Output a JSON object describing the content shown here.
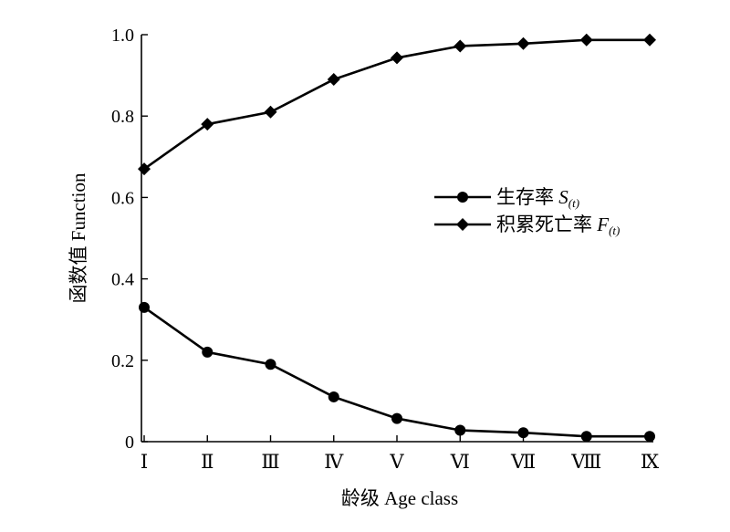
{
  "chart_data": {
    "type": "line",
    "categories": [
      "Ⅰ",
      "Ⅱ",
      "Ⅲ",
      "Ⅳ",
      "Ⅴ",
      "Ⅵ",
      "Ⅶ",
      "Ⅷ",
      "Ⅸ"
    ],
    "xlabel": "龄级 Age class",
    "ylabel": "函数值 Function",
    "ylim": [
      0,
      1.0
    ],
    "yticks": [
      "0",
      "0.2",
      "0.4",
      "0.6",
      "0.8",
      "1.0"
    ],
    "grid": false,
    "legend_position": "right",
    "series": [
      {
        "name": "生存率",
        "symbol": "S",
        "subscript": "(t)",
        "marker": "circle",
        "color": "#000000",
        "values": [
          0.33,
          0.22,
          0.19,
          0.11,
          0.057,
          0.028,
          0.022,
          0.013,
          0.013
        ]
      },
      {
        "name": "积累死亡率",
        "symbol": "F",
        "subscript": "(t)",
        "marker": "diamond",
        "color": "#000000",
        "values": [
          0.67,
          0.78,
          0.81,
          0.89,
          0.943,
          0.972,
          0.978,
          0.987,
          0.987
        ]
      }
    ]
  }
}
